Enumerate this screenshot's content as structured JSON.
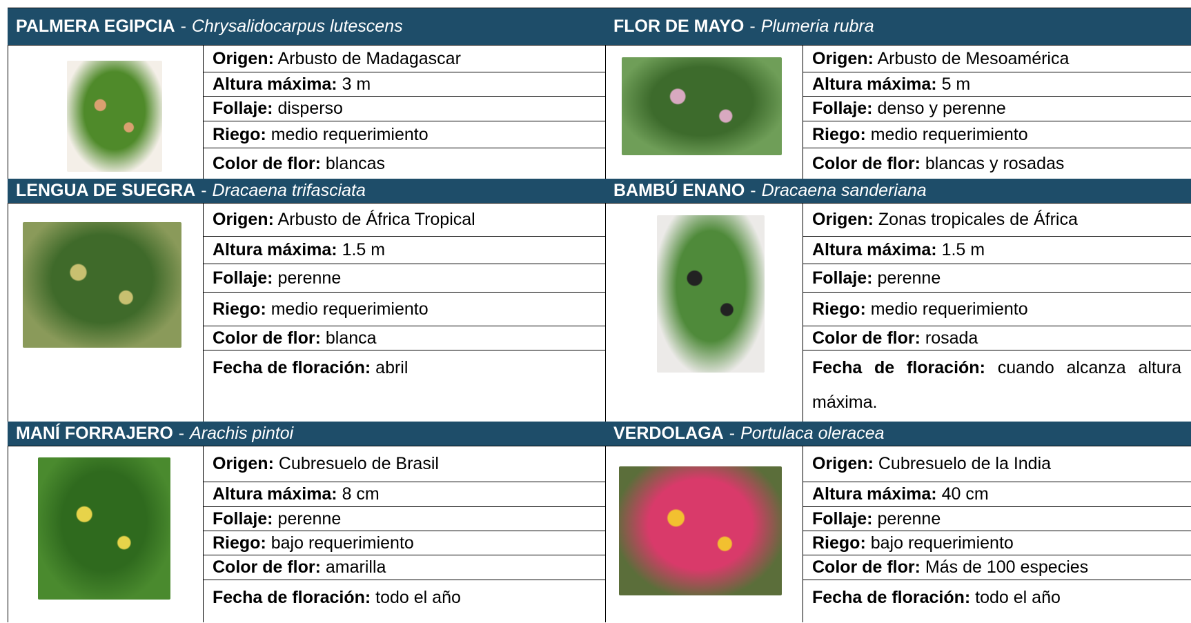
{
  "plants": [
    {
      "name": "PALMERA EGIPCIA",
      "scientific": "Chrysalidocarpus lutescens",
      "fields": [
        {
          "label": "Origen:",
          "value": "Arbusto de Madagascar"
        },
        {
          "label": "Altura máxima:",
          "value": "3 m"
        },
        {
          "label": "Follaje:",
          "value": "disperso"
        },
        {
          "label": "Riego:",
          "value": "medio requerimiento"
        },
        {
          "label": "Color de flor:",
          "value": "blancas"
        }
      ]
    },
    {
      "name": "FLOR DE MAYO",
      "scientific": "Plumeria rubra",
      "fields": [
        {
          "label": "Origen:",
          "value": "Arbusto de Mesoamérica"
        },
        {
          "label": "Altura máxima:",
          "value": "5 m"
        },
        {
          "label": "Follaje:",
          "value": "denso y perenne"
        },
        {
          "label": "Riego:",
          "value": "medio requerimiento"
        },
        {
          "label": "Color de flor:",
          "value": "blancas y rosadas"
        }
      ]
    },
    {
      "name": "LENGUA DE SUEGRA",
      "scientific": "Dracaena trifasciata",
      "fields": [
        {
          "label": "Origen:",
          "value": "Arbusto de África Tropical"
        },
        {
          "label": "Altura máxima:",
          "value": "1.5 m"
        },
        {
          "label": "Follaje:",
          "value": "perenne"
        },
        {
          "label": "Riego:",
          "value": "medio requerimiento"
        },
        {
          "label": "Color de flor:",
          "value": "blanca"
        },
        {
          "label": "Fecha de floración:",
          "value": "abril"
        }
      ]
    },
    {
      "name": "BAMBÚ ENANO",
      "scientific": "Dracaena sanderiana",
      "fields": [
        {
          "label": "Origen:",
          "value": "Zonas tropicales de África"
        },
        {
          "label": "Altura máxima:",
          "value": "1.5 m"
        },
        {
          "label": "Follaje:",
          "value": "perenne"
        },
        {
          "label": "Riego:",
          "value": "medio requerimiento"
        },
        {
          "label": "Color de flor:",
          "value": "rosada"
        },
        {
          "label": "Fecha de floración:",
          "value": "cuando alcanza altura máxima."
        }
      ]
    },
    {
      "name": "MANÍ FORRAJERO",
      "scientific": "Arachis pintoi",
      "fields": [
        {
          "label": "Origen:",
          "value": "Cubresuelo de Brasil"
        },
        {
          "label": "Altura máxima:",
          "value": "8 cm"
        },
        {
          "label": "Follaje:",
          "value": "perenne"
        },
        {
          "label": "Riego:",
          "value": "bajo requerimiento"
        },
        {
          "label": "Color de flor:",
          "value": "amarilla"
        },
        {
          "label": "Fecha de floración:",
          "value": "todo el año"
        }
      ]
    },
    {
      "name": "VERDOLAGA",
      "scientific": "Portulaca oleracea",
      "fields": [
        {
          "label": "Origen:",
          "value": "Cubresuelo de la India"
        },
        {
          "label": "Altura máxima:",
          "value": "40 cm"
        },
        {
          "label": "Follaje:",
          "value": "perenne"
        },
        {
          "label": "Riego:",
          "value": "bajo requerimiento"
        },
        {
          "label": "Color de flor:",
          "value": "Más de 100 especies"
        },
        {
          "label": "Fecha de floración:",
          "value": "todo el año"
        }
      ]
    }
  ]
}
